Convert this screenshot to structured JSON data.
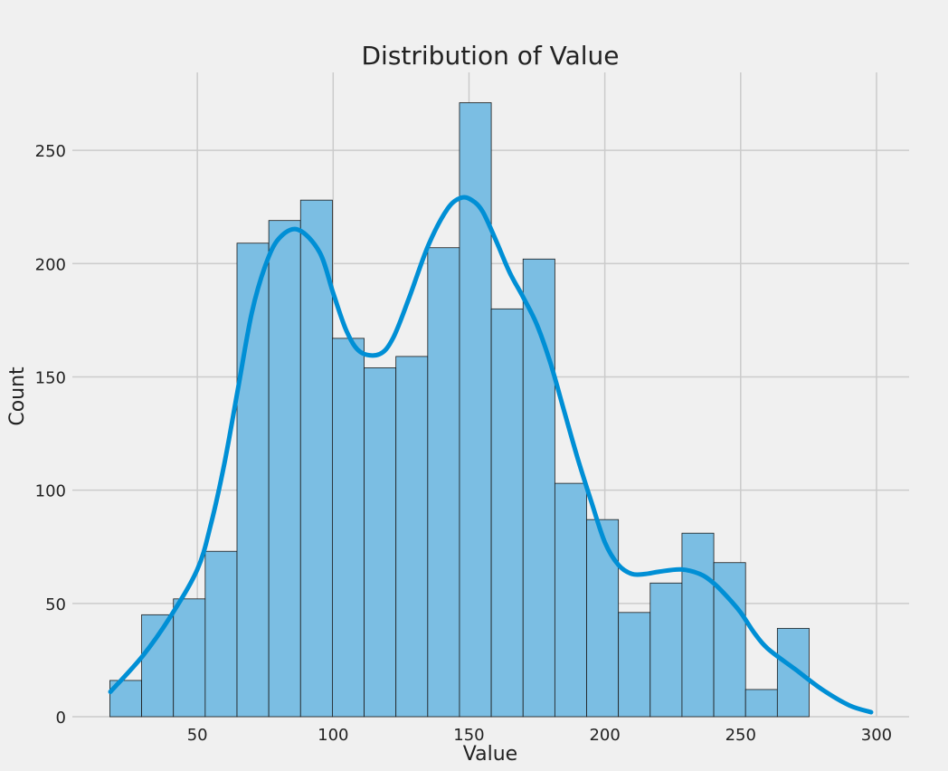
{
  "chart_data": {
    "type": "histogram",
    "title": "Distribution of Value",
    "xlabel": "Value",
    "ylabel": "Count",
    "xlim": [
      4,
      312
    ],
    "ylim": [
      0,
      270
    ],
    "x_ticks": [
      50,
      100,
      150,
      200,
      250,
      300
    ],
    "y_ticks": [
      0,
      50,
      100,
      150,
      200,
      250
    ],
    "grid": true,
    "bin_start": 17.8,
    "bin_width": 11.7,
    "counts": [
      16,
      45,
      52,
      73,
      209,
      219,
      228,
      167,
      154,
      159,
      207,
      271,
      180,
      202,
      103,
      87,
      46,
      59,
      81,
      68,
      12,
      39
    ],
    "kde": {
      "x": [
        18,
        30,
        40,
        50,
        55,
        60,
        65,
        70,
        75,
        80,
        87,
        95,
        100,
        105,
        110,
        117,
        122,
        128,
        135,
        142,
        147,
        151,
        155,
        160,
        165,
        170,
        175,
        180,
        185,
        190,
        195,
        200,
        205,
        210,
        215,
        220,
        228,
        235,
        240,
        245,
        250,
        255,
        260,
        270,
        280,
        290,
        298
      ],
      "y": [
        11,
        27,
        44,
        65,
        85,
        112,
        145,
        178,
        199,
        211,
        215,
        205,
        187,
        170,
        161,
        160,
        167,
        185,
        208,
        224,
        229,
        228,
        223,
        210,
        196,
        185,
        173,
        156,
        135,
        114,
        95,
        77,
        67,
        63,
        63,
        64,
        65,
        63,
        59,
        53,
        46,
        37,
        30,
        21,
        12,
        5,
        2
      ]
    },
    "colors": {
      "bar_fill": "#7bbee3",
      "bar_edge": "#1a1a1a",
      "kde_line": "#008fd5",
      "grid": "#cbcbcb",
      "background": "#f0f0f0"
    }
  }
}
